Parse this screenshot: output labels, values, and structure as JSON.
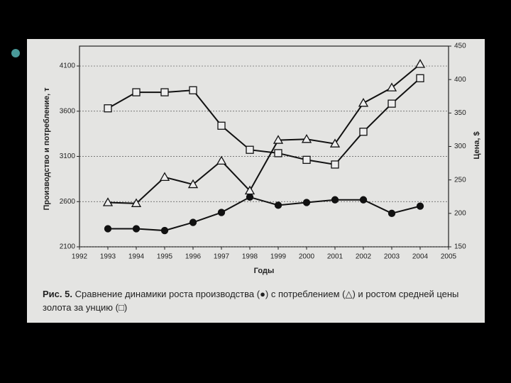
{
  "chart_data": {
    "type": "line",
    "xlabel": "Годы",
    "ylabel": "Производство и потребление, т",
    "y2label": "Цена, $",
    "caption_label": "Рис. 5.",
    "caption": "Сравнение динамики роста производства (●) с потреблением (△) и ростом средней цены золота за унцию (□)",
    "x": [
      1993,
      1994,
      1995,
      1996,
      1997,
      1998,
      1999,
      2000,
      2001,
      2002,
      2003,
      2004
    ],
    "xlim": [
      1992,
      2005
    ],
    "xticks": [
      1992,
      1993,
      1994,
      1995,
      1996,
      1997,
      1998,
      1999,
      2000,
      2001,
      2002,
      2003,
      2004,
      2005
    ],
    "ylim": [
      2100,
      4320
    ],
    "yticks": [
      2100,
      2600,
      3100,
      3600,
      4100
    ],
    "y2lim": [
      150,
      450
    ],
    "y2ticks": [
      150,
      200,
      250,
      300,
      350,
      400,
      450
    ],
    "grid": true,
    "series": [
      {
        "color": "#111111",
        "marker": "circle",
        "values": [
          2300,
          2300,
          2280,
          2370,
          2480,
          2650,
          2560,
          2590,
          2620,
          2620,
          2470,
          2550
        ]
      },
      {
        "color": "#111111",
        "marker": "triangle",
        "values": [
          2590,
          2580,
          2870,
          2790,
          3050,
          2720,
          3280,
          3290,
          3240,
          3690,
          3860,
          4120
        ]
      },
      {
        "color": "#111111",
        "marker": "square",
        "axis": "y2",
        "values": [
          357,
          381,
          381,
          384,
          331,
          295,
          290,
          280,
          273,
          322,
          364,
          402
        ]
      }
    ]
  }
}
